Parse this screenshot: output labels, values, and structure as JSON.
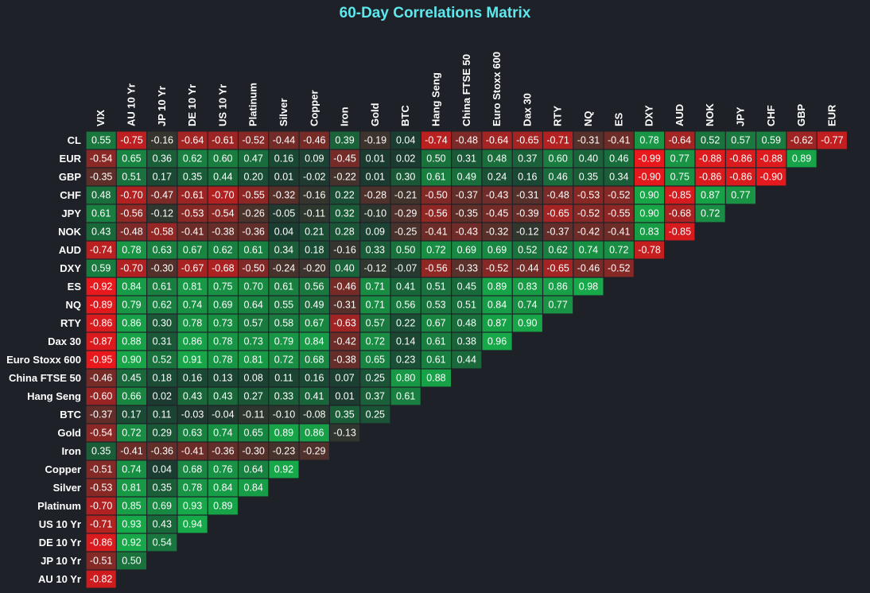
{
  "chart_data": {
    "type": "heatmap",
    "title": "60-Day Correlations Matrix",
    "columns": [
      "VIX",
      "AU 10 Yr",
      "JP 10 Yr",
      "DE 10 Yr",
      "US 10 Yr",
      "Platinum",
      "Silver",
      "Copper",
      "Iron",
      "Gold",
      "BTC",
      "Hang Seng",
      "China FTSE 50",
      "Euro Stoxx 600",
      "Dax 30",
      "RTY",
      "NQ",
      "ES",
      "DXY",
      "AUD",
      "NOK",
      "JPY",
      "CHF",
      "GBP",
      "EUR"
    ],
    "rows": [
      {
        "label": "CL",
        "values": [
          0.55,
          -0.75,
          -0.16,
          -0.64,
          -0.61,
          -0.52,
          -0.44,
          -0.46,
          0.39,
          -0.19,
          0.04,
          -0.74,
          -0.48,
          -0.64,
          -0.65,
          -0.71,
          -0.31,
          -0.41,
          0.78,
          -0.64,
          0.52,
          0.57,
          0.59,
          -0.62,
          -0.77
        ]
      },
      {
        "label": "EUR",
        "values": [
          -0.54,
          0.65,
          0.36,
          0.62,
          0.6,
          0.47,
          0.16,
          0.09,
          -0.45,
          0.01,
          0.02,
          0.5,
          0.31,
          0.48,
          0.37,
          0.6,
          0.4,
          0.46,
          -0.99,
          0.77,
          -0.88,
          -0.86,
          -0.88,
          0.89
        ]
      },
      {
        "label": "GBP",
        "values": [
          -0.35,
          0.51,
          0.17,
          0.35,
          0.44,
          0.2,
          0.01,
          -0.02,
          -0.22,
          0.01,
          0.3,
          0.61,
          0.49,
          0.24,
          0.16,
          0.46,
          0.35,
          0.34,
          -0.9,
          0.75,
          -0.86,
          -0.86,
          -0.9
        ]
      },
      {
        "label": "CHF",
        "values": [
          0.48,
          -0.7,
          -0.47,
          -0.61,
          -0.7,
          -0.55,
          -0.32,
          -0.16,
          0.22,
          -0.28,
          -0.21,
          -0.5,
          -0.37,
          -0.43,
          -0.31,
          -0.48,
          -0.53,
          -0.52,
          0.9,
          -0.85,
          0.87,
          0.77
        ]
      },
      {
        "label": "JPY",
        "values": [
          0.61,
          -0.56,
          -0.12,
          -0.53,
          -0.54,
          -0.26,
          -0.05,
          -0.11,
          0.32,
          -0.1,
          -0.29,
          -0.56,
          -0.35,
          -0.45,
          -0.39,
          -0.65,
          -0.52,
          -0.55,
          0.9,
          -0.68,
          0.72
        ]
      },
      {
        "label": "NOK",
        "values": [
          0.43,
          -0.48,
          -0.58,
          -0.41,
          -0.38,
          -0.36,
          0.04,
          0.21,
          0.28,
          0.09,
          -0.25,
          -0.41,
          -0.43,
          -0.32,
          -0.12,
          -0.37,
          -0.42,
          -0.41,
          0.83,
          -0.85
        ]
      },
      {
        "label": "AUD",
        "values": [
          -0.74,
          0.78,
          0.63,
          0.67,
          0.62,
          0.61,
          0.34,
          0.18,
          -0.16,
          0.33,
          0.5,
          0.72,
          0.69,
          0.69,
          0.52,
          0.62,
          0.74,
          0.72,
          -0.78
        ]
      },
      {
        "label": "DXY",
        "values": [
          0.59,
          -0.7,
          -0.3,
          -0.67,
          -0.68,
          -0.5,
          -0.24,
          -0.2,
          0.4,
          -0.12,
          -0.07,
          -0.56,
          -0.33,
          -0.52,
          -0.44,
          -0.65,
          -0.46,
          -0.52
        ]
      },
      {
        "label": "ES",
        "values": [
          -0.92,
          0.84,
          0.61,
          0.81,
          0.75,
          0.7,
          0.61,
          0.56,
          -0.46,
          0.71,
          0.41,
          0.51,
          0.45,
          0.89,
          0.83,
          0.86,
          0.98
        ]
      },
      {
        "label": "NQ",
        "values": [
          -0.89,
          0.79,
          0.62,
          0.74,
          0.69,
          0.64,
          0.55,
          0.49,
          -0.31,
          0.71,
          0.56,
          0.53,
          0.51,
          0.84,
          0.74,
          0.77
        ]
      },
      {
        "label": "RTY",
        "values": [
          -0.86,
          0.86,
          0.3,
          0.78,
          0.73,
          0.57,
          0.58,
          0.67,
          -0.63,
          0.57,
          0.22,
          0.67,
          0.48,
          0.87,
          0.9
        ]
      },
      {
        "label": "Dax 30",
        "values": [
          -0.87,
          0.88,
          0.31,
          0.86,
          0.78,
          0.73,
          0.79,
          0.84,
          -0.42,
          0.72,
          0.14,
          0.61,
          0.38,
          0.96
        ]
      },
      {
        "label": "Euro Stoxx 600",
        "values": [
          -0.95,
          0.9,
          0.52,
          0.91,
          0.78,
          0.81,
          0.72,
          0.68,
          -0.38,
          0.65,
          0.23,
          0.61,
          0.44
        ]
      },
      {
        "label": "China FTSE 50",
        "values": [
          -0.46,
          0.45,
          0.18,
          0.16,
          0.13,
          0.08,
          0.11,
          0.16,
          0.07,
          0.25,
          0.8,
          0.88
        ]
      },
      {
        "label": "Hang Seng",
        "values": [
          -0.6,
          0.66,
          0.02,
          0.43,
          0.43,
          0.27,
          0.33,
          0.41,
          0.01,
          0.37,
          0.61
        ]
      },
      {
        "label": "BTC",
        "values": [
          -0.37,
          0.17,
          0.11,
          -0.03,
          -0.04,
          -0.11,
          -0.1,
          -0.08,
          0.35,
          0.25
        ]
      },
      {
        "label": "Gold",
        "values": [
          -0.54,
          0.72,
          0.29,
          0.63,
          0.74,
          0.65,
          0.89,
          0.86,
          -0.13
        ]
      },
      {
        "label": "Iron",
        "values": [
          0.35,
          -0.41,
          -0.36,
          -0.41,
          -0.36,
          -0.3,
          -0.23,
          -0.29
        ]
      },
      {
        "label": "Copper",
        "values": [
          -0.51,
          0.74,
          0.04,
          0.68,
          0.76,
          0.64,
          0.92
        ]
      },
      {
        "label": "Silver",
        "values": [
          -0.53,
          0.81,
          0.35,
          0.78,
          0.84,
          0.84
        ]
      },
      {
        "label": "Platinum",
        "values": [
          -0.7,
          0.85,
          0.69,
          0.93,
          0.89
        ]
      },
      {
        "label": "US 10 Yr",
        "values": [
          -0.71,
          0.93,
          0.43,
          0.94
        ]
      },
      {
        "label": "DE 10 Yr",
        "values": [
          -0.86,
          0.92,
          0.54
        ]
      },
      {
        "label": "JP 10 Yr",
        "values": [
          -0.51,
          0.5
        ]
      },
      {
        "label": "AU 10 Yr",
        "values": [
          -0.82
        ]
      }
    ],
    "value_range": [
      -1,
      1
    ],
    "colors": {
      "strong_negative": "#e8181c",
      "neutral": "#1b3a30",
      "strong_positive": "#17a849",
      "background": "#1e2128",
      "title": "#5ee8ee",
      "text": "#ffffff"
    },
    "legend": "none",
    "grid": false
  }
}
